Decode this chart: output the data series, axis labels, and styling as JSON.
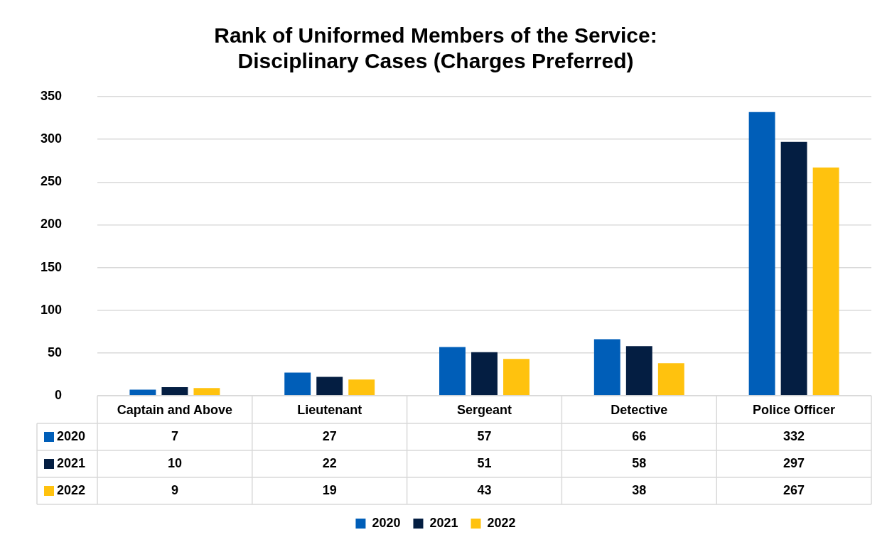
{
  "chart_data": {
    "type": "bar",
    "title": "Rank of Uniformed Members of the Service: Disciplinary Cases (Charges Preferred)",
    "categories": [
      "Captain and Above",
      "Lieutenant",
      "Sergeant",
      "Detective",
      "Police Officer"
    ],
    "series": [
      {
        "name": "2020",
        "color": "#005eb8",
        "values": [
          7,
          27,
          57,
          66,
          332
        ]
      },
      {
        "name": "2021",
        "color": "#041e42",
        "values": [
          10,
          22,
          51,
          58,
          297
        ]
      },
      {
        "name": "2022",
        "color": "#ffc20e",
        "values": [
          9,
          19,
          43,
          38,
          267
        ]
      }
    ],
    "ylim": [
      0,
      350
    ],
    "yticks": [
      0,
      50,
      100,
      150,
      200,
      250,
      300,
      350
    ],
    "grid": "y",
    "legend": "bottom",
    "data_labels": true
  }
}
